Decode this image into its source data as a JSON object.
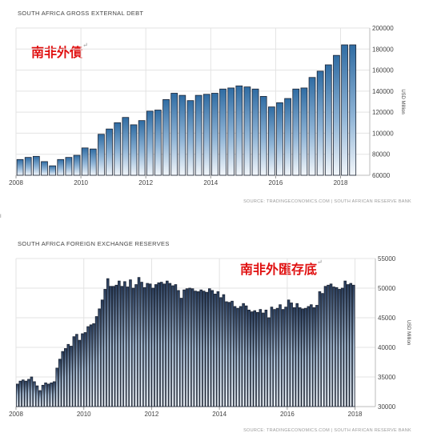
{
  "charts": [
    {
      "title": "SOUTH AFRICA GROSS EXTERNAL DEBT",
      "note": "南非外債",
      "note_mark": "↵",
      "source": "SOURCE: TRADINGECONOMICS.COM | SOUTH AFRICAN RESERVE BANK",
      "unit": "USD Million",
      "accent": "#2f6ca3"
    },
    {
      "title": "SOUTH AFRICA FOREIGN EXCHANGE RESERVES",
      "note": "南非外匯存底",
      "note_mark": "↵",
      "source": "SOURCE: TRADINGECONOMICS.COM | SOUTH AFRICAN RESERVE BANK",
      "unit": "USD Million",
      "accent": "#1d2f4a"
    }
  ],
  "side_mark": "I",
  "chart_data": [
    {
      "type": "bar",
      "title": "SOUTH AFRICA GROSS EXTERNAL DEBT",
      "ylabel": "USD Million",
      "x_ticks": [
        "2008",
        "2010",
        "2012",
        "2014",
        "2016",
        "2018"
      ],
      "y_ticks": [
        "60000",
        "80000",
        "100000",
        "120000",
        "140000",
        "160000",
        "180000",
        "200000"
      ],
      "ylim": [
        60000,
        200000
      ],
      "xlim": [
        2008.0,
        2018.9
      ],
      "grid": true,
      "y_axis_position": "right",
      "x": [
        2008.0,
        2008.25,
        2008.5,
        2008.75,
        2009.0,
        2009.25,
        2009.5,
        2009.75,
        2010.0,
        2010.25,
        2010.5,
        2010.75,
        2011.0,
        2011.25,
        2011.5,
        2011.75,
        2012.0,
        2012.25,
        2012.5,
        2012.75,
        2013.0,
        2013.25,
        2013.5,
        2013.75,
        2014.0,
        2014.25,
        2014.5,
        2014.75,
        2015.0,
        2015.25,
        2015.5,
        2015.75,
        2016.0,
        2016.25,
        2016.5,
        2016.75,
        2017.0,
        2017.25,
        2017.5,
        2017.75,
        2018.0,
        2018.25
      ],
      "values": [
        75000,
        77000,
        78000,
        73000,
        69000,
        75000,
        77000,
        79000,
        86000,
        85000,
        99000,
        104000,
        110000,
        115000,
        108000,
        112000,
        121000,
        122000,
        132000,
        138000,
        136000,
        131000,
        136000,
        137000,
        138000,
        142000,
        143000,
        145000,
        144000,
        142000,
        135000,
        125000,
        129000,
        133000,
        142000,
        143000,
        153000,
        159000,
        165000,
        174000,
        184000,
        184000
      ]
    },
    {
      "type": "bar",
      "title": "SOUTH AFRICA FOREIGN EXCHANGE RESERVES",
      "ylabel": "USD Million",
      "x_ticks": [
        "2008",
        "2010",
        "2012",
        "2014",
        "2016",
        "2018"
      ],
      "y_ticks": [
        "30000",
        "35000",
        "40000",
        "45000",
        "50000",
        "55000"
      ],
      "ylim": [
        30000,
        55000
      ],
      "xlim": [
        2008.0,
        2018.6
      ],
      "grid": true,
      "y_axis_position": "right",
      "x_start": 2008.0,
      "x_step": 0.08333,
      "values": [
        33800,
        34300,
        34500,
        34300,
        34600,
        35000,
        34200,
        33500,
        32700,
        33600,
        34000,
        33800,
        34000,
        34200,
        36500,
        38000,
        39300,
        39800,
        40500,
        40200,
        41800,
        42200,
        41200,
        42300,
        42500,
        43500,
        43800,
        44000,
        45200,
        46500,
        48000,
        49800,
        51600,
        50300,
        50300,
        50500,
        51200,
        50300,
        51100,
        50200,
        51400,
        50000,
        50600,
        51800,
        51000,
        50100,
        50800,
        50700,
        50000,
        50600,
        50900,
        51000,
        50700,
        51200,
        50800,
        50400,
        50600,
        49600,
        48300,
        49700,
        49900,
        50000,
        49900,
        49500,
        49400,
        49700,
        49500,
        49300,
        49900,
        49600,
        49000,
        49400,
        48400,
        48900,
        47700,
        47600,
        47800,
        46900,
        46600,
        46900,
        47400,
        47000,
        46300,
        46000,
        46200,
        45900,
        46400,
        45800,
        46300,
        45000,
        46800,
        46400,
        46600,
        47200,
        46400,
        46800,
        48000,
        47500,
        46700,
        47400,
        46700,
        46500,
        46600,
        46900,
        47200,
        46700,
        47100,
        49400,
        49100,
        50300,
        50500,
        50700,
        50200,
        50100,
        49800,
        50000,
        51200,
        50600,
        50800,
        50500
      ]
    }
  ]
}
